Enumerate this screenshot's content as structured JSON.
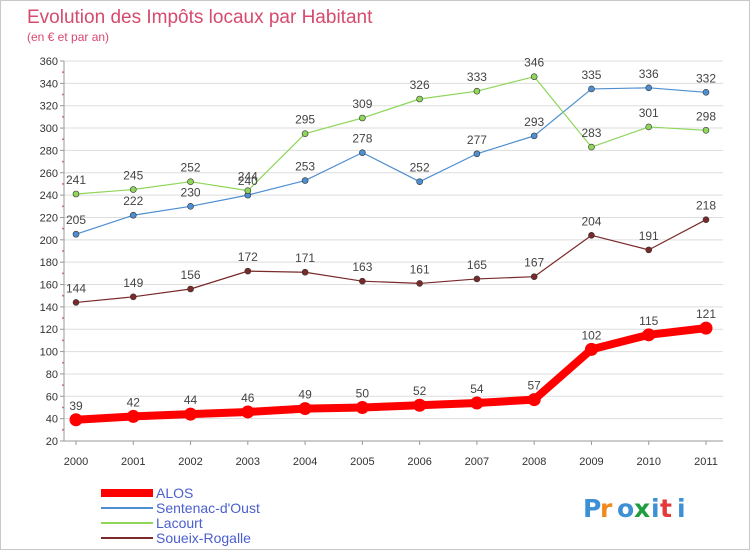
{
  "colors": {
    "title": "#d64a6e",
    "legend_text": "#4a5fcf",
    "grid": "#dddddd",
    "axis": "#999999"
  },
  "logo": {
    "text": "Proxiti",
    "icon": "proxiti-logo"
  },
  "chart_data": {
    "type": "line",
    "title": "Evolution des Impôts locaux par Habitant",
    "subtitle": "(en € et par an)",
    "xlabel": "",
    "ylabel": "",
    "ylim": [
      20,
      360
    ],
    "y_ticks": [
      20,
      40,
      60,
      80,
      100,
      120,
      140,
      160,
      180,
      200,
      220,
      240,
      260,
      280,
      300,
      320,
      340,
      360
    ],
    "grid": true,
    "legend_position": "bottom-left",
    "categories": [
      "2000",
      "2001",
      "2002",
      "2003",
      "2004",
      "2005",
      "2006",
      "2007",
      "2008",
      "2009",
      "2010",
      "2011"
    ],
    "series": [
      {
        "name": "ALOS",
        "color": "#ff0000",
        "emphasis": true,
        "values": [
          39,
          42,
          44,
          46,
          49,
          50,
          52,
          54,
          57,
          102,
          115,
          121
        ]
      },
      {
        "name": "Sentenac-d'Oust",
        "color": "#4f8fd1",
        "emphasis": false,
        "values": [
          205,
          222,
          230,
          240,
          253,
          278,
          252,
          277,
          293,
          335,
          336,
          332
        ]
      },
      {
        "name": "Lacourt",
        "color": "#8fd65a",
        "emphasis": false,
        "values": [
          241,
          245,
          252,
          244,
          295,
          309,
          326,
          333,
          346,
          283,
          301,
          298
        ]
      },
      {
        "name": "Soueix-Rogalle",
        "color": "#7a2a2a",
        "emphasis": false,
        "values": [
          144,
          149,
          156,
          172,
          171,
          163,
          161,
          165,
          167,
          204,
          191,
          218
        ]
      }
    ]
  }
}
